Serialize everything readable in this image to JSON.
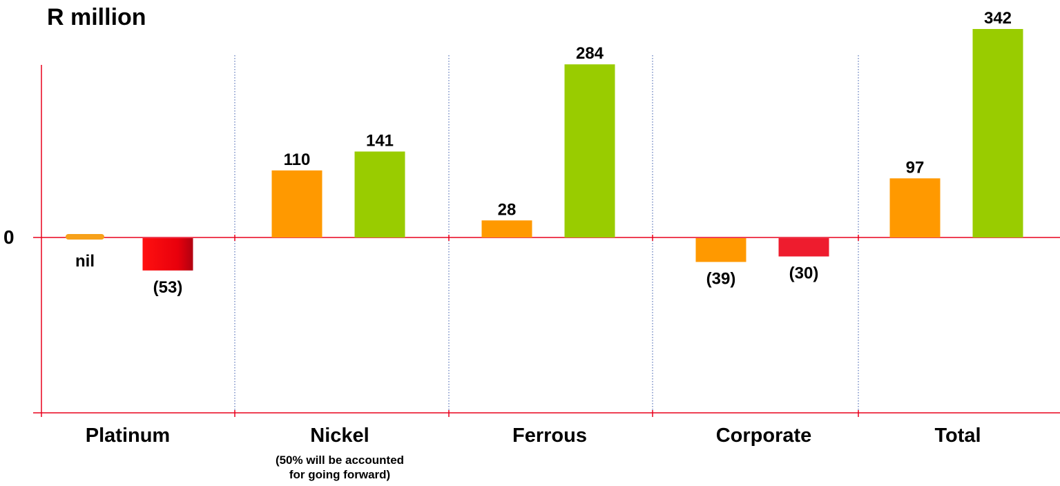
{
  "chart_data": {
    "type": "bar",
    "title": "R million",
    "ylabel": "",
    "xlabel": "",
    "zero_tick_label": "0",
    "ylim": [
      -330,
      400
    ],
    "grid": false,
    "categories": [
      "Platinum",
      "Nickel",
      "Ferrous",
      "Corporate",
      "Total"
    ],
    "category_notes": [
      "",
      "(50% will be accounted\nfor going forward)",
      "",
      "",
      ""
    ],
    "bars": [
      [
        {
          "value": 0,
          "label": "nil",
          "color": "#F7A11A"
        },
        {
          "value": -53,
          "label": "(53)",
          "color": "#E8001C"
        }
      ],
      [
        {
          "value": 110,
          "label": "110",
          "color": "#FF9900"
        },
        {
          "value": 141,
          "label": "141",
          "color": "#99CC00"
        }
      ],
      [
        {
          "value": 28,
          "label": "28",
          "color": "#FF9900"
        },
        {
          "value": 284,
          "label": "284",
          "color": "#99CC00"
        }
      ],
      [
        {
          "value": -39,
          "label": "(39)",
          "color": "#FF9900"
        },
        {
          "value": -30,
          "label": "(30)",
          "color": "#EE1C2E"
        }
      ],
      [
        {
          "value": 97,
          "label": "97",
          "color": "#FF9900"
        },
        {
          "value": 342,
          "label": "342",
          "color": "#99CC00"
        }
      ]
    ],
    "colors": {
      "axis": "#E8001C",
      "separator": "#3355AA"
    }
  }
}
